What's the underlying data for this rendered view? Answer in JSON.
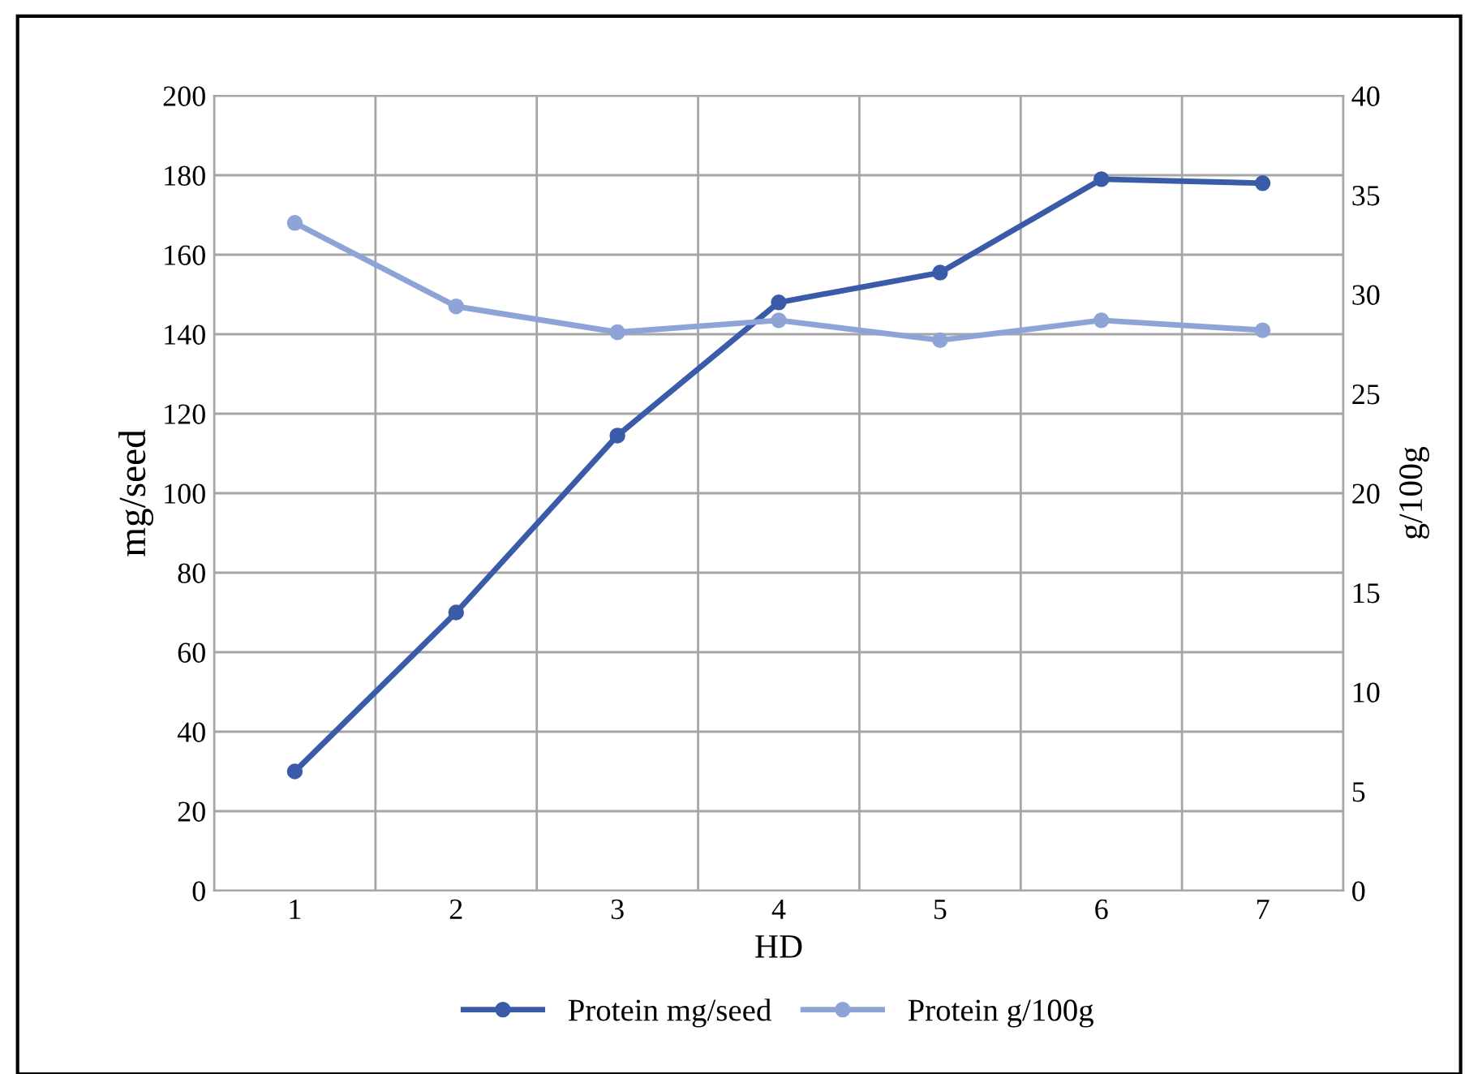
{
  "chart_data": {
    "type": "line",
    "xlabel": "HD",
    "ylabel": "mg/seed",
    "y2label": "g/100g",
    "categories": [
      "1",
      "2",
      "3",
      "4",
      "5",
      "6",
      "7"
    ],
    "series": [
      {
        "name": "Protein mg/seed",
        "color": "#3a5ca8",
        "values": [
          30,
          70,
          114.5,
          148,
          155.5,
          179,
          178
        ]
      },
      {
        "name": "Protein g/100g",
        "color": "#8fa4d6",
        "axis": "y2",
        "values": [
          33.6,
          29.4,
          28.1,
          28.7,
          27.7,
          28.7,
          28.2
        ]
      }
    ],
    "ylim": [
      0,
      200
    ],
    "yticks": [
      0,
      20,
      40,
      60,
      80,
      100,
      120,
      140,
      160,
      180,
      200
    ],
    "y2lim": [
      0,
      40
    ],
    "y2ticks": [
      0,
      5,
      10,
      15,
      20,
      25,
      30,
      35,
      40
    ],
    "grid": true,
    "legend": "bottom",
    "marker": "circle",
    "line_style": "solid"
  }
}
